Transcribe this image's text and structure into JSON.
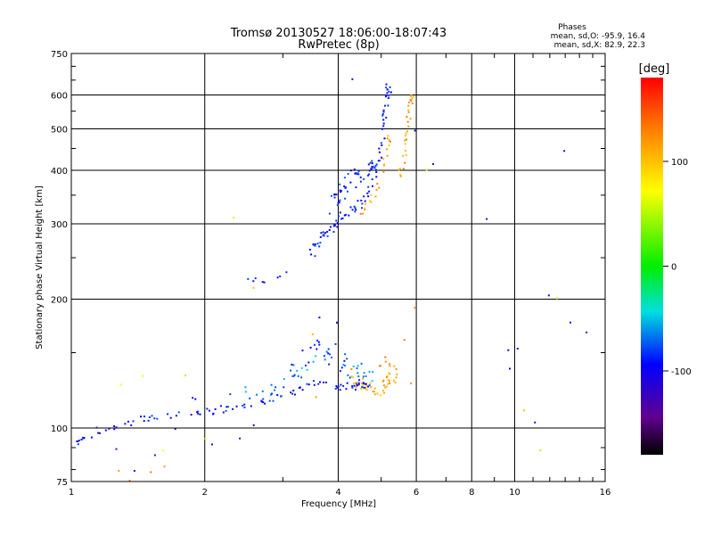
{
  "chart_data": {
    "type": "scatter",
    "title": "Tromsø 20130527 18:06:00-18:07:43",
    "subtitle": "RwPretec (8p)",
    "xlabel": "Frequency [MHz]",
    "ylabel": "Stationary phase Virtual Height [km]",
    "x_scale": "log",
    "y_scale": "log",
    "xlim": [
      1,
      16
    ],
    "ylim": [
      75,
      750
    ],
    "x_ticks": [
      1,
      2,
      4,
      6,
      8,
      10,
      16
    ],
    "y_ticks": [
      75,
      100,
      200,
      300,
      400,
      500,
      600,
      750
    ],
    "grid": true,
    "phases_box": {
      "title": "Phases",
      "line_o": "mean, sd,O: -95.9, 16.4",
      "line_x": "mean, sd,X:  82.9, 22.3"
    },
    "colorbar": {
      "label": "[deg]",
      "range": [
        -180,
        180
      ],
      "ticks": [
        100,
        0,
        -100
      ]
    },
    "traces": [
      {
        "x": [
          1.0,
          1.05,
          1.1,
          1.2,
          1.3,
          1.4,
          1.5,
          1.6,
          1.8,
          2.0,
          2.2,
          2.4,
          2.6,
          2.8,
          3.0,
          3.2,
          3.4,
          3.6,
          3.8,
          4.0,
          4.2,
          4.4,
          4.6
        ],
        "y": [
          92,
          93,
          95,
          98,
          102,
          104,
          106,
          107,
          108,
          109,
          110,
          112,
          114,
          116,
          119,
          122,
          126,
          128,
          127,
          125,
          124,
          125,
          126
        ],
        "phase": -100,
        "spread": 0.015,
        "n": 4
      },
      {
        "x": [
          1.9,
          2.2,
          2.5,
          2.8,
          3.0,
          3.2,
          3.4,
          3.6,
          3.8,
          4.0,
          4.2,
          4.4,
          4.6
        ],
        "y": [
          112,
          115,
          118,
          122,
          128,
          135,
          145,
          155,
          148,
          140,
          130,
          130,
          128
        ],
        "phase": -90,
        "spread": 0.05,
        "n": 4
      },
      {
        "x": [
          2.4,
          2.8,
          3.1,
          3.3,
          3.5,
          3.7,
          3.9,
          4.1,
          4.3,
          4.5,
          4.7
        ],
        "y": [
          118,
          122,
          128,
          134,
          140,
          148,
          152,
          144,
          138,
          134,
          130
        ],
        "phase": -70,
        "spread": 0.045,
        "n": 3
      },
      {
        "x": [
          4.3,
          4.5,
          4.7,
          4.9,
          5.1,
          5.2
        ],
        "y": [
          130,
          127,
          125,
          123,
          125,
          130
        ],
        "phase": 110,
        "spread": 0.03,
        "n": 6
      },
      {
        "x": [
          5.0,
          5.1,
          5.3,
          5.4
        ],
        "y": [
          145,
          140,
          138,
          132
        ],
        "phase": 120,
        "spread": 0.03,
        "n": 3
      },
      {
        "x": [
          3.5,
          3.6,
          3.75,
          3.9,
          4.0,
          4.2,
          4.4,
          4.6,
          4.8,
          4.95,
          5.05,
          5.1,
          5.15,
          5.2
        ],
        "y": [
          255,
          270,
          285,
          295,
          305,
          318,
          330,
          345,
          375,
          420,
          480,
          540,
          590,
          620
        ],
        "phase": -100,
        "spread": 0.025,
        "n": 6
      },
      {
        "x": [
          3.9,
          4.0,
          4.1,
          4.25,
          4.4,
          4.6,
          4.8
        ],
        "y": [
          330,
          345,
          360,
          375,
          385,
          395,
          405
        ],
        "phase": -95,
        "spread": 0.04,
        "n": 7
      },
      {
        "x": [
          4.4,
          4.6,
          4.8,
          5.0,
          5.1,
          5.2
        ],
        "y": [
          320,
          330,
          345,
          380,
          430,
          470
        ],
        "phase": 110,
        "spread": 0.025,
        "n": 4
      },
      {
        "x": [
          5.5,
          5.6,
          5.7,
          5.75,
          5.8,
          5.85
        ],
        "y": [
          390,
          420,
          460,
          510,
          560,
          590
        ],
        "phase": 115,
        "spread": 0.02,
        "n": 5
      },
      {
        "x": [
          2.5,
          2.6,
          2.7,
          2.9,
          3.3,
          3.6
        ],
        "y": [
          220,
          218,
          222,
          225,
          250,
          270
        ],
        "phase": -100,
        "spread": 0.02,
        "n": 2
      },
      {
        "x": [
          1.15,
          1.25,
          1.4,
          1.55,
          1.7,
          1.9,
          2.1,
          2.4,
          2.6,
          3.6,
          4.0,
          4.3,
          5.9,
          6.5,
          8.7,
          9.7,
          9.8,
          10.2,
          11.2,
          12.0,
          13.0,
          13.5,
          14.5
        ],
        "y": [
          102,
          90,
          79,
          88,
          98,
          118,
          90,
          95,
          102,
          180,
          175,
          640,
          500,
          405,
          308,
          152,
          140,
          150,
          102,
          200,
          435,
          175,
          170
        ],
        "phase": -120,
        "spread": 0.02,
        "n": 1
      },
      {
        "x": [
          1.3,
          1.45,
          1.6,
          1.8,
          2.0,
          2.3,
          2.6,
          3.5,
          5.9,
          6.3,
          10.6,
          11.4,
          12.5
        ],
        "y": [
          125,
          130,
          88,
          130,
          95,
          310,
          215,
          165,
          195,
          410,
          110,
          90,
          205
        ],
        "phase": 90,
        "spread": 0.02,
        "n": 1
      },
      {
        "x": [
          1.28,
          1.35,
          1.5,
          1.62,
          3.6,
          4.3,
          5.7,
          5.85
        ],
        "y": [
          78,
          76,
          79,
          82,
          118,
          140,
          160,
          130
        ],
        "phase": 130,
        "spread": 0.02,
        "n": 1
      }
    ]
  }
}
